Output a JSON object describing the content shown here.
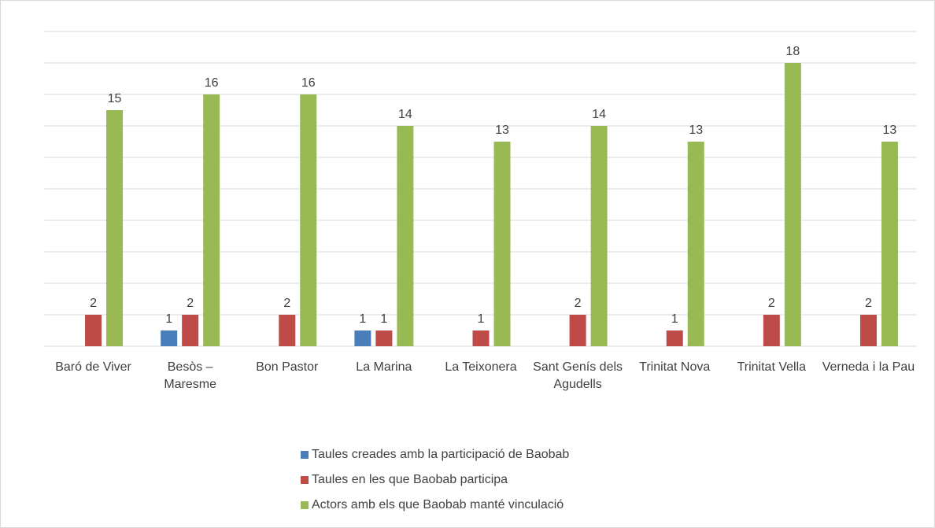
{
  "chart_data": {
    "type": "bar",
    "categories": [
      "Baró de Viver",
      "Besòs – Maresme",
      "Bon Pastor",
      "La Marina",
      "La Teixonera",
      "Sant Genís dels Agudells",
      "Trinitat Nova",
      "Trinitat Vella",
      "Verneda i la Pau"
    ],
    "series": [
      {
        "name": "Taules creades amb la participació de Baobab",
        "color": "#4a7ebb",
        "values": [
          null,
          1,
          null,
          1,
          null,
          null,
          null,
          null,
          null
        ]
      },
      {
        "name": "Taules en les que Baobab participa",
        "color": "#be4b48",
        "values": [
          2,
          2,
          2,
          1,
          1,
          2,
          1,
          2,
          2
        ]
      },
      {
        "name": "Actors amb els que Baobab manté vinculació",
        "color": "#98b954",
        "values": [
          15,
          16,
          16,
          14,
          13,
          14,
          13,
          18,
          13
        ]
      }
    ],
    "ylim": [
      0,
      20
    ],
    "yticks": [
      0,
      2,
      4,
      6,
      8,
      10,
      12,
      14,
      16,
      18,
      20
    ],
    "grid": true
  }
}
